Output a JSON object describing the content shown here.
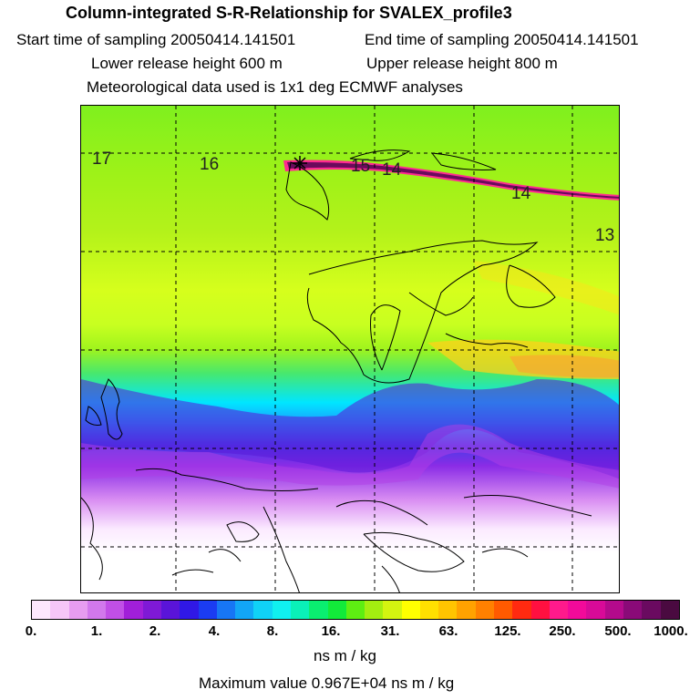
{
  "header": {
    "title": "Column-integrated S-R-Relationship for SVALEX_profile3",
    "start_time": "Start time of sampling 20050414.141501",
    "end_time": "End time of sampling 20050414.141501",
    "lower_release": "Lower release height  600 m",
    "upper_release": "Upper release height  800 m",
    "met_data": "Meteorological data used is 1x1 deg ECMWF analyses"
  },
  "map": {
    "contour_labels": [
      "17",
      "16",
      "15",
      "14",
      "14",
      "13"
    ],
    "plume_color": "#6b0a5c"
  },
  "colorbar": {
    "colors": [
      "#fde8fd",
      "#f6c6f7",
      "#e79cf0",
      "#d278ec",
      "#c14fe6",
      "#a11fd9",
      "#7f19d6",
      "#5a14d8",
      "#3018e6",
      "#1b3cf2",
      "#1776f5",
      "#12a6f6",
      "#10d2f6",
      "#10f0f0",
      "#0af0b8",
      "#0aee70",
      "#12ea3a",
      "#5eee12",
      "#a4ee10",
      "#d4f410",
      "#ffff00",
      "#ffe000",
      "#ffc400",
      "#ffa200",
      "#ff8000",
      "#ff5a00",
      "#ff2a10",
      "#ff1040",
      "#ff1a8c",
      "#f20a9a",
      "#d80a98",
      "#b40a8c",
      "#8a0a78",
      "#6a0a60",
      "#4a0a40"
    ],
    "tick_labels": [
      "0.",
      "1.",
      "2.",
      "4.",
      "8.",
      "16.",
      "31.",
      "63.",
      "125.",
      "250.",
      "500.",
      "1000."
    ],
    "units": "ns m / kg"
  },
  "footer": {
    "max_value": "Maximum value  0.967E+04 ns m / kg"
  }
}
